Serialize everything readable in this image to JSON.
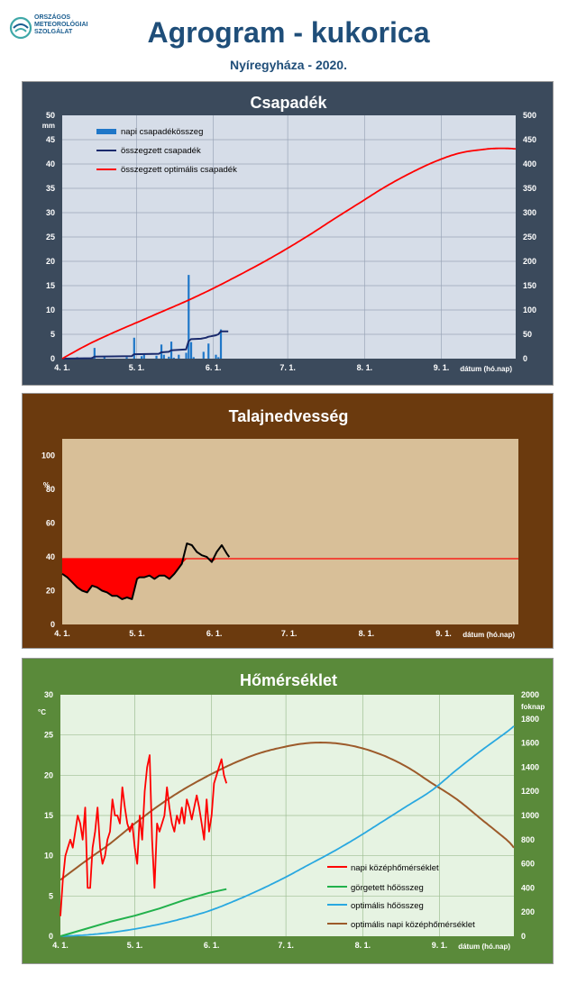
{
  "header": {
    "logo_lines": [
      "ORSZÁGOS",
      "METEOROLÓGIAI",
      "SZOLGÁLAT"
    ],
    "title": "Agrogram - kukorica",
    "subtitle": "Nyíregyháza - 2020."
  },
  "colors": {
    "panel1_bg": "#3b4a5c",
    "panel1_plot": "#d6dde8",
    "panel2_bg": "#6b3a0e",
    "panel2_plot": "#d8bf98",
    "panel3_bg": "#5a8a3a",
    "panel3_plot": "#e6f3e2"
  },
  "chart_data": [
    {
      "type": "bar",
      "title": "Csapadék",
      "x_tick_labels": [
        "4. 1.",
        "5. 1.",
        "6. 1.",
        "7. 1.",
        "8. 1.",
        "9. 1."
      ],
      "x_axis_label": "dátum (hó.nap)",
      "x_range_days": [
        0,
        183
      ],
      "y_left": {
        "unit": "mm",
        "range": [
          0,
          50
        ],
        "ticks": [
          "0",
          "5",
          "10",
          "15",
          "20",
          "25",
          "30",
          "35",
          "40",
          "45",
          "50"
        ]
      },
      "y_right": {
        "range": [
          0,
          500
        ],
        "ticks": [
          "0",
          "50",
          "100",
          "150",
          "200",
          "250",
          "300",
          "350",
          "400",
          "450",
          "500"
        ]
      },
      "legend": [
        "napi csapadékösszeg",
        "összegzett csapadék",
        "összegzett optimális  csapadék"
      ],
      "series": [
        {
          "name": "napi csapadékösszeg",
          "axis": "left",
          "kind": "bar",
          "color": "#1f77c8",
          "x": [
            6,
            12,
            13,
            17,
            26,
            29,
            32,
            33,
            38,
            40,
            41,
            43,
            44,
            45,
            47,
            50,
            51,
            52,
            53,
            57,
            59,
            62,
            63,
            64
          ],
          "y": [
            0.3,
            0.3,
            2.2,
            0.3,
            0.3,
            4.3,
            0.5,
            0.8,
            0.6,
            2.9,
            0.8,
            0.4,
            3.5,
            0.2,
            0.8,
            1.2,
            17.2,
            3.4,
            0.3,
            1.4,
            3.1,
            0.8,
            0.3,
            6.0
          ]
        },
        {
          "name": "összegzett csapadék",
          "axis": "right",
          "kind": "line",
          "color": "#1a2a6c",
          "x": [
            0,
            12,
            13,
            28,
            29,
            39,
            40,
            43,
            44,
            50,
            51,
            52,
            56,
            57,
            58,
            59,
            60,
            61,
            62,
            63,
            64,
            67
          ],
          "y": [
            0,
            1,
            4,
            5,
            9,
            10,
            13,
            14,
            17,
            19,
            36,
            40,
            41,
            42,
            43,
            45,
            46,
            47,
            48,
            50,
            56,
            56
          ]
        },
        {
          "name": "összegzett optimális  csapadék",
          "axis": "right",
          "kind": "line",
          "color": "#ff0000",
          "x": [
            0,
            10,
            20,
            30,
            40,
            50,
            60,
            70,
            80,
            90,
            100,
            110,
            120,
            130,
            140,
            150,
            160,
            170,
            175,
            180,
            183
          ],
          "y": [
            0,
            28,
            52,
            74,
            96,
            118,
            142,
            168,
            195,
            224,
            255,
            288,
            320,
            352,
            380,
            404,
            422,
            430,
            432,
            432,
            431
          ]
        }
      ]
    },
    {
      "type": "area",
      "title": "Talajnedvesség",
      "x_tick_labels": [
        "4. 1.",
        "5. 1.",
        "6. 1.",
        "7. 1.",
        "8. 1.",
        "9. 1."
      ],
      "x_axis_label": "dátum (hó.nap)",
      "x_range_days": [
        0,
        183
      ],
      "y_left": {
        "unit": "%",
        "range": [
          0,
          110
        ],
        "ticks": [
          "0",
          "20",
          "40",
          "60",
          "80",
          "100"
        ]
      },
      "threshold": {
        "value": 39,
        "color": "#ff0000"
      },
      "series": [
        {
          "name": "talajnedvesség",
          "kind": "line",
          "color": "#000000",
          "deficit_fill": "#ff0000",
          "x": [
            0,
            2,
            4,
            6,
            8,
            10,
            12,
            14,
            16,
            18,
            20,
            22,
            24,
            26,
            28,
            29,
            30,
            31,
            33,
            35,
            37,
            39,
            41,
            43,
            45,
            46,
            48,
            50,
            52,
            54,
            56,
            58,
            60,
            62,
            64,
            66,
            67
          ],
          "y": [
            30,
            28,
            25,
            22,
            20,
            19,
            23,
            22,
            20,
            19,
            17,
            17,
            15,
            16,
            15,
            21,
            27,
            28,
            28,
            29,
            27,
            29,
            29,
            27,
            30,
            32,
            36,
            48,
            47,
            43,
            41,
            40,
            37,
            43,
            47,
            42,
            40
          ]
        }
      ]
    },
    {
      "type": "line",
      "title": "Hőmérséklet",
      "x_tick_labels": [
        "4. 1.",
        "5. 1.",
        "6. 1.",
        "7. 1.",
        "8. 1.",
        "9. 1."
      ],
      "x_axis_label": "dátum (hó.nap)",
      "x_range_days": [
        0,
        183
      ],
      "y_left": {
        "unit": "°C",
        "range": [
          0,
          30
        ],
        "ticks": [
          "0",
          "5",
          "10",
          "15",
          "20",
          "25",
          "30"
        ]
      },
      "y_right": {
        "unit": "foknap",
        "range": [
          0,
          2000
        ],
        "ticks": [
          "0",
          "200",
          "400",
          "600",
          "800",
          "1000",
          "1200",
          "1400",
          "1600",
          "1800",
          "2000"
        ]
      },
      "legend": [
        "napi középhőmérséklet",
        "görgetett hőösszeg",
        "optimális hőösszeg",
        "optimális napi középhőmérséklet"
      ],
      "series": [
        {
          "name": "napi középhőmérséklet",
          "axis": "left",
          "kind": "line",
          "color": "#ff0000",
          "x": [
            0,
            1,
            2,
            3,
            4,
            5,
            6,
            7,
            8,
            9,
            10,
            11,
            12,
            13,
            14,
            15,
            16,
            17,
            18,
            19,
            20,
            21,
            22,
            23,
            24,
            25,
            26,
            27,
            28,
            29,
            30,
            31,
            32,
            33,
            34,
            35,
            36,
            37,
            38,
            39,
            40,
            41,
            42,
            43,
            44,
            45,
            46,
            47,
            48,
            49,
            50,
            51,
            52,
            53,
            54,
            55,
            56,
            57,
            58,
            59,
            60,
            61,
            62,
            63,
            64,
            65,
            66,
            67
          ],
          "y": [
            2.5,
            7,
            10,
            11,
            12,
            11,
            13,
            15,
            14,
            12,
            16,
            6,
            6,
            11,
            13,
            16,
            11,
            9,
            10,
            12,
            13,
            17,
            15,
            15,
            14,
            18.5,
            16,
            14,
            13,
            14,
            11,
            9,
            15,
            12,
            18,
            21,
            22.5,
            12,
            6,
            14,
            13,
            14,
            15,
            18.5,
            16,
            14,
            13,
            15,
            14,
            16,
            14,
            17,
            16,
            14.5,
            16,
            17.5,
            16,
            14,
            12,
            17,
            13,
            15,
            19,
            20,
            21,
            22,
            20,
            19
          ]
        },
        {
          "name": "görgetett hőösszeg",
          "axis": "right",
          "kind": "line",
          "color": "#22b14c",
          "x": [
            0,
            10,
            20,
            30,
            40,
            50,
            60,
            67
          ],
          "y": [
            0,
            60,
            120,
            170,
            230,
            300,
            360,
            390
          ]
        },
        {
          "name": "optimális hőösszeg",
          "axis": "right",
          "kind": "line",
          "color": "#29a8e0",
          "x": [
            0,
            10,
            20,
            30,
            40,
            50,
            60,
            70,
            80,
            90,
            100,
            110,
            120,
            130,
            140,
            150,
            160,
            170,
            180,
            183
          ],
          "y": [
            0,
            10,
            30,
            60,
            100,
            150,
            210,
            290,
            380,
            480,
            590,
            700,
            820,
            950,
            1080,
            1210,
            1380,
            1540,
            1690,
            1740
          ]
        },
        {
          "name": "optimális napi középhőmérséklet",
          "axis": "left",
          "kind": "line",
          "color": "#9c5a2a",
          "x": [
            0,
            10,
            20,
            30,
            40,
            50,
            60,
            70,
            80,
            90,
            100,
            110,
            120,
            130,
            140,
            150,
            160,
            170,
            180,
            183
          ],
          "y": [
            7,
            9.3,
            11.5,
            14,
            16.3,
            18.3,
            20,
            21.5,
            22.7,
            23.5,
            24,
            24,
            23.5,
            22.5,
            21,
            19,
            17,
            14.5,
            12,
            11
          ]
        }
      ]
    }
  ]
}
